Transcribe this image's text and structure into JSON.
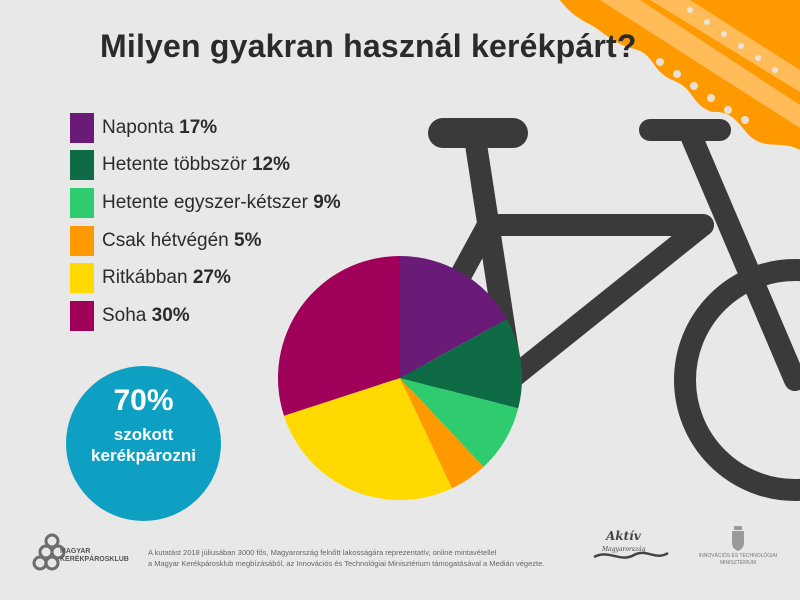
{
  "chart_data": {
    "type": "pie",
    "title": "Milyen gyakran használ kerékpárt?",
    "slices": [
      {
        "label": "Naponta",
        "value": 17,
        "display": "17%",
        "color": "#6a1b78"
      },
      {
        "label": "Hetente többször",
        "value": 12,
        "display": "12%",
        "color": "#0e6b45"
      },
      {
        "label": "Hetente egyszer-kétszer",
        "value": 9,
        "display": "9%",
        "color": "#2ecc6e"
      },
      {
        "label": "Csak hétvégén",
        "value": 5,
        "display": "5%",
        "color": "#ff9900"
      },
      {
        "label": "Ritkábban",
        "value": 27,
        "display": "27%",
        "color": "#ffd900"
      },
      {
        "label": "Soha",
        "value": 30,
        "display": "30%",
        "color": "#a0005a"
      }
    ],
    "legend_placement": "left"
  },
  "badge": {
    "value": "70%",
    "line1": "szokott",
    "line2": "kerékpározni",
    "color": "#0ea0c3"
  },
  "footer": {
    "logo_line1": "MAGYAR",
    "logo_line2": "KERÉKPÁROSKLUB",
    "line1": "A kutatást 2018 júliusában 3000 fős, Magyarország felnőtt lakosságára reprezentatív, online mintavétellel",
    "line2": "a Magyar Kerékpárosklub megbízásából, az Innovációs és Technológiai Minisztérium támogatásával a Medián végezte.",
    "aktiv_line1": "Aktív",
    "aktiv_line2": "Magyarország",
    "ministry_line1": "INNOVÁCIÓS ÉS TECHNOLÓGIAI",
    "ministry_line2": "MINISZTÉRIUM"
  },
  "colors": {
    "background": "#e8e8e8",
    "bike": "#3a3a3a",
    "accent_orange": "#ff9900"
  }
}
